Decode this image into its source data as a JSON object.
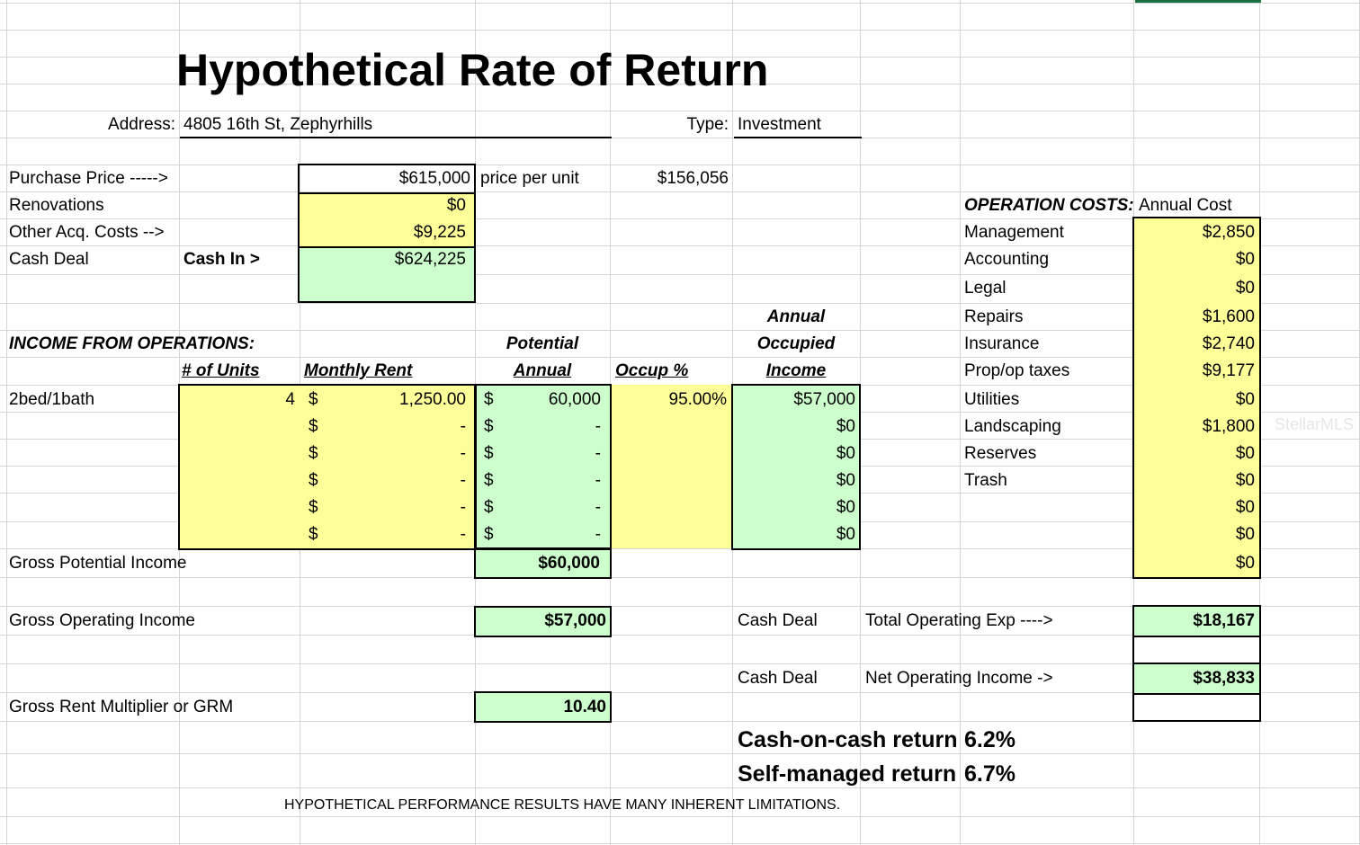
{
  "title": "Hypothetical Rate of Return",
  "address": {
    "label": "Address:",
    "value": "4805 16th St, Zephyrhills"
  },
  "type": {
    "label": "Type:",
    "value": "Investment"
  },
  "acquisition": {
    "purchase_price_label": "Purchase Price ----->",
    "purchase_price": "$615,000",
    "price_per_unit_label": "price per unit",
    "price_per_unit": "$156,056",
    "renovations_label": "Renovations",
    "renovations": "$0",
    "other_label": "Other Acq. Costs -->",
    "other": "$9,225",
    "cash_deal_label": "Cash Deal",
    "cash_in_label": "Cash In >",
    "cash_in": "$624,225"
  },
  "income": {
    "section_label": "INCOME FROM OPERATIONS:",
    "headers": {
      "units": "# of Units",
      "monthly_rent": "Monthly Rent",
      "potential_1": "Potential",
      "potential_2": "Annual",
      "occup": "Occup %",
      "annual_1": "Annual",
      "annual_2": "Occupied",
      "annual_3": "Income"
    },
    "rows": [
      {
        "label": "2bed/1bath",
        "units": "4",
        "rent_sym": "$",
        "rent": "1,250.00",
        "pot_sym": "$",
        "potential": "60,000",
        "occup": "95.00%",
        "income": "$57,000"
      },
      {
        "label": "",
        "units": "",
        "rent_sym": "$",
        "rent": "-",
        "pot_sym": "$",
        "potential": "-",
        "occup": "",
        "income": "$0"
      },
      {
        "label": "",
        "units": "",
        "rent_sym": "$",
        "rent": "-",
        "pot_sym": "$",
        "potential": "-",
        "occup": "",
        "income": "$0"
      },
      {
        "label": "",
        "units": "",
        "rent_sym": "$",
        "rent": "-",
        "pot_sym": "$",
        "potential": "-",
        "occup": "",
        "income": "$0"
      },
      {
        "label": "",
        "units": "",
        "rent_sym": "$",
        "rent": "-",
        "pot_sym": "$",
        "potential": "-",
        "occup": "",
        "income": "$0"
      },
      {
        "label": "",
        "units": "",
        "rent_sym": "$",
        "rent": "-",
        "pot_sym": "$",
        "potential": "-",
        "occup": "",
        "income": "$0"
      }
    ],
    "gpi_label": "Gross Potential Income",
    "gpi": "$60,000",
    "goi_label": "Gross Operating Income",
    "goi": "$57,000",
    "grm_label": "Gross Rent Multiplier or GRM",
    "grm": "10.40"
  },
  "operation_costs": {
    "label": "OPERATION COSTS:",
    "annual_cost_label": "Annual Cost",
    "items": [
      {
        "name": "Management",
        "cost": "$2,850"
      },
      {
        "name": "Accounting",
        "cost": "$0"
      },
      {
        "name": "Legal",
        "cost": "$0"
      },
      {
        "name": "Repairs",
        "cost": "$1,600"
      },
      {
        "name": "Insurance",
        "cost": "$2,740"
      },
      {
        "name": "Prop/op taxes",
        "cost": "$9,177"
      },
      {
        "name": "Utilities",
        "cost": "$0"
      },
      {
        "name": "Landscaping",
        "cost": "$1,800"
      },
      {
        "name": "Reserves",
        "cost": "$0"
      },
      {
        "name": "Trash",
        "cost": "$0"
      },
      {
        "name": "",
        "cost": "$0"
      },
      {
        "name": "",
        "cost": "$0"
      },
      {
        "name": "",
        "cost": "$0"
      }
    ]
  },
  "summary": {
    "cash_deal_1": "Cash Deal",
    "total_opex_label": "Total Operating Exp ---->",
    "total_opex": "$18,167",
    "cash_deal_2": "Cash Deal",
    "noi_label": "Net Operating Income ->",
    "noi": "$38,833",
    "coc_label": "Cash-on-cash return",
    "coc": "6.2%",
    "self_label": "Self-managed return",
    "self": "6.7%"
  },
  "disclaimer": "HYPOTHETICAL PERFORMANCE RESULTS HAVE MANY INHERENT LIMITATIONS.",
  "watermark": "StellarMLS"
}
